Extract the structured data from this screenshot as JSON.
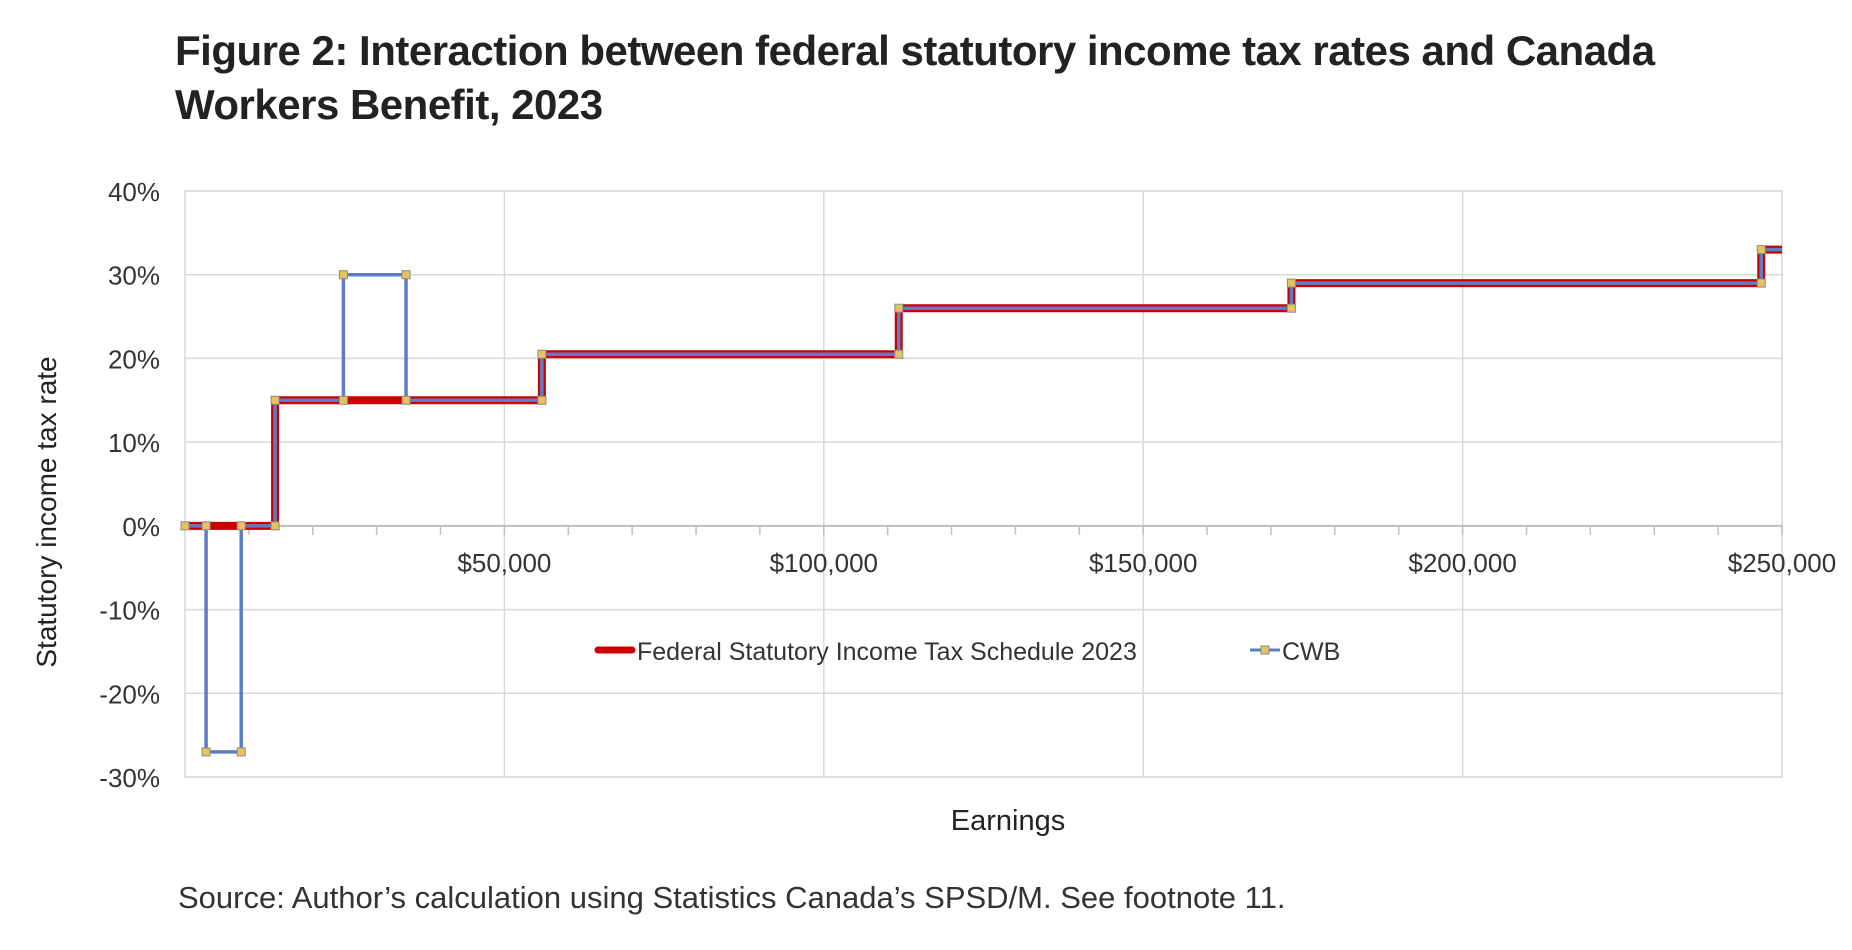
{
  "title": "Figure 2: Interaction between federal statutory income tax rates and Canada Workers Benefit, 2023",
  "source": "Source: Author’s calculation using Statistics Canada’s SPSD/M. See footnote 11.",
  "chart_data": {
    "type": "line",
    "xlabel": "Earnings",
    "ylabel": "Statutory income tax rate",
    "xlim": [
      0,
      250000
    ],
    "ylim": [
      -0.3,
      0.4
    ],
    "x_ticks": [
      50000,
      100000,
      150000,
      200000,
      250000
    ],
    "x_tick_labels": [
      "$50,000",
      "$100,000",
      "$150,000",
      "$200,000",
      "$250,000"
    ],
    "y_ticks": [
      -0.3,
      -0.2,
      -0.1,
      0,
      0.1,
      0.2,
      0.3,
      0.4
    ],
    "y_tick_labels": [
      "-30%",
      "-20%",
      "-10%",
      "0%",
      "10%",
      "20%",
      "30%",
      "40%"
    ],
    "grid": true,
    "legend_position": "inside-lower-center",
    "series": [
      {
        "name": "Federal Statutory Income Tax Schedule 2023",
        "color": "#cc0000",
        "x": [
          0,
          14100,
          14100,
          55867,
          55867,
          111733,
          111733,
          173205,
          173205,
          246752,
          246752,
          250000
        ],
        "y": [
          0,
          0,
          0.15,
          0.15,
          0.205,
          0.205,
          0.26,
          0.26,
          0.29,
          0.29,
          0.33,
          0.33
        ]
      },
      {
        "name": "CWB",
        "color": "#5b7ec4",
        "marker_color": "#e6c35c",
        "x": [
          0,
          3300,
          3300,
          8800,
          8800,
          14100,
          14100,
          24800,
          24800,
          34600,
          34600,
          55867,
          55867,
          111733,
          111733,
          173205,
          173205,
          246752,
          246752,
          250000
        ],
        "y": [
          0,
          0,
          -0.27,
          -0.27,
          0,
          0,
          0.15,
          0.15,
          0.3,
          0.3,
          0.15,
          0.15,
          0.205,
          0.205,
          0.26,
          0.26,
          0.29,
          0.29,
          0.33,
          0.33
        ]
      }
    ]
  }
}
